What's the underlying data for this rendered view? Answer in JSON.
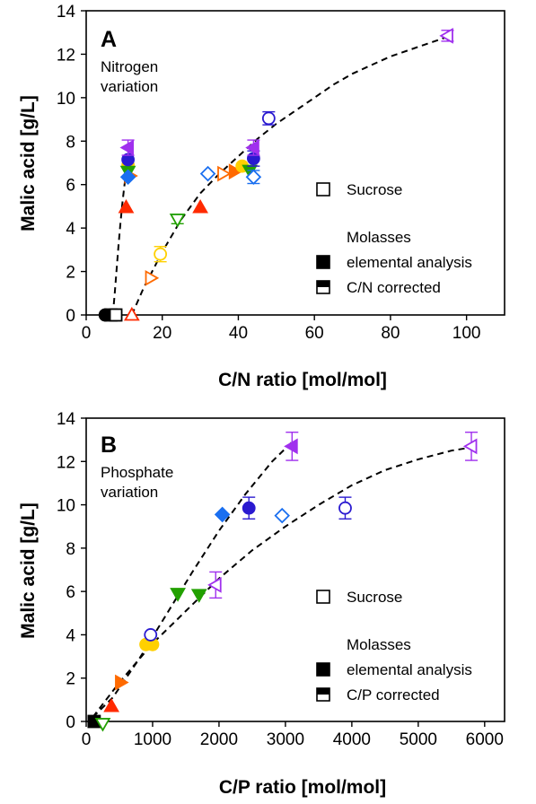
{
  "chart_data": [
    {
      "type": "scatter",
      "panel_label": "A",
      "annotation": [
        "Nitrogen",
        "variation"
      ],
      "xlabel": "C/N ratio   [mol/mol]",
      "ylabel": "Malic acid   [g/L]",
      "xlim": [
        0,
        110
      ],
      "ylim": [
        0,
        14
      ],
      "xticks": [
        0,
        20,
        40,
        60,
        80,
        100
      ],
      "yticks": [
        0,
        2,
        4,
        6,
        8,
        10,
        12,
        14
      ],
      "grid": false,
      "legend_position": "right",
      "legend": {
        "entries": [
          {
            "label": "Sucrose",
            "marker": "open-square"
          },
          {
            "label": "Molasses",
            "marker": "none"
          },
          {
            "label": "elemental analysis",
            "marker": "filled-square"
          },
          {
            "label": "C/N corrected",
            "marker": "half-filled-square"
          }
        ]
      },
      "fit_curves": [
        {
          "style": "dashed",
          "x": [
            7,
            7.5,
            8,
            8.5,
            9,
            9.5,
            10,
            10.5,
            11
          ],
          "y": [
            0,
            1.0,
            2.1,
            3.2,
            4.2,
            5.1,
            5.9,
            6.6,
            7.2
          ]
        },
        {
          "style": "dashed",
          "x": [
            12,
            15,
            20,
            25,
            30,
            35,
            40,
            45,
            50,
            55,
            60,
            65,
            70,
            75,
            80,
            85,
            90,
            95
          ],
          "y": [
            0,
            1.2,
            2.9,
            4.4,
            5.6,
            6.5,
            7.3,
            8.1,
            8.8,
            9.4,
            10.0,
            10.6,
            11.1,
            11.5,
            11.9,
            12.2,
            12.5,
            12.8
          ]
        }
      ],
      "points": [
        {
          "x": 12,
          "y": 0.0,
          "marker": "triangle-up",
          "fill": "open",
          "color": "#ff2a00"
        },
        {
          "x": 10.5,
          "y": 4.95,
          "marker": "triangle-up",
          "fill": "filled",
          "color": "#ff2a00"
        },
        {
          "x": 30,
          "y": 4.95,
          "marker": "triangle-up",
          "fill": "filled",
          "color": "#ff2a00"
        },
        {
          "x": 17,
          "y": 1.7,
          "marker": "triangle-right",
          "fill": "open",
          "color": "#ff6a00"
        },
        {
          "x": 36,
          "y": 6.5,
          "marker": "triangle-right",
          "fill": "open",
          "color": "#ff6a00"
        },
        {
          "x": 11.5,
          "y": 6.4,
          "marker": "triangle-right",
          "fill": "filled",
          "color": "#ff6a00"
        },
        {
          "x": 39,
          "y": 6.6,
          "marker": "triangle-right",
          "fill": "filled",
          "color": "#ff6a00"
        },
        {
          "x": 19.5,
          "y": 2.8,
          "marker": "circle",
          "fill": "open",
          "color": "#ffd000",
          "yerr": 0.35
        },
        {
          "x": 41,
          "y": 6.85,
          "marker": "circle",
          "fill": "filled",
          "color": "#ffd000"
        },
        {
          "x": 11,
          "y": 6.9,
          "marker": "circle",
          "fill": "filled",
          "color": "#ffd000"
        },
        {
          "x": 24,
          "y": 4.4,
          "marker": "triangle-down",
          "fill": "open",
          "color": "#22a000",
          "yerr": 0.2
        },
        {
          "x": 43,
          "y": 6.65,
          "marker": "triangle-down",
          "fill": "filled",
          "color": "#22a000"
        },
        {
          "x": 11,
          "y": 6.6,
          "marker": "triangle-down",
          "fill": "filled",
          "color": "#22a000"
        },
        {
          "x": 32,
          "y": 6.5,
          "marker": "diamond",
          "fill": "open",
          "color": "#1a6ff0"
        },
        {
          "x": 44,
          "y": 6.35,
          "marker": "diamond",
          "fill": "open",
          "color": "#1a6ff0",
          "yerr": 0.3
        },
        {
          "x": 11,
          "y": 6.35,
          "marker": "diamond",
          "fill": "filled",
          "color": "#1a6ff0"
        },
        {
          "x": 48,
          "y": 9.05,
          "marker": "circle",
          "fill": "open",
          "color": "#2a1ad0",
          "yerr": 0.3
        },
        {
          "x": 44,
          "y": 7.2,
          "marker": "circle",
          "fill": "filled",
          "color": "#2a1ad0",
          "yerr": 0.35
        },
        {
          "x": 11,
          "y": 7.15,
          "marker": "circle",
          "fill": "filled",
          "color": "#2a1ad0"
        },
        {
          "x": 95,
          "y": 12.85,
          "marker": "triangle-left",
          "fill": "open",
          "color": "#a030ee",
          "yerr": 0.25
        },
        {
          "x": 44,
          "y": 7.7,
          "marker": "triangle-left",
          "fill": "filled",
          "color": "#a030ee",
          "yerr": 0.35
        },
        {
          "x": 11,
          "y": 7.7,
          "marker": "triangle-left",
          "fill": "filled",
          "color": "#a030ee",
          "yerr": 0.35
        },
        {
          "x": 5,
          "y": 0.0,
          "marker": "circle",
          "fill": "filled",
          "color": "#000000"
        },
        {
          "x": 6.5,
          "y": 0.0,
          "marker": "square",
          "fill": "filled",
          "color": "#000000"
        },
        {
          "x": 7.8,
          "y": 0.0,
          "marker": "square",
          "fill": "open",
          "color": "#000000"
        }
      ]
    },
    {
      "type": "scatter",
      "panel_label": "B",
      "annotation": [
        "Phosphate",
        "variation"
      ],
      "xlabel": "C/P ratio   [mol/mol]",
      "ylabel": "Malic acid   [g/L]",
      "xlim": [
        0,
        6300
      ],
      "ylim": [
        0,
        14
      ],
      "xticks": [
        0,
        1000,
        2000,
        3000,
        4000,
        5000,
        6000
      ],
      "yticks": [
        0,
        2,
        4,
        6,
        8,
        10,
        12,
        14
      ],
      "grid": false,
      "legend_position": "right",
      "legend": {
        "entries": [
          {
            "label": "Sucrose",
            "marker": "open-square"
          },
          {
            "label": "Molasses",
            "marker": "none"
          },
          {
            "label": "elemental analysis",
            "marker": "filled-square"
          },
          {
            "label": "C/P corrected",
            "marker": "half-filled-square"
          }
        ]
      },
      "fit_curves": [
        {
          "style": "dashed",
          "x": [
            100,
            400,
            800,
            1200,
            1600,
            2000,
            2400,
            2800,
            3100
          ],
          "y": [
            0.2,
            1.1,
            2.9,
            4.9,
            6.9,
            8.8,
            10.5,
            12.0,
            12.9
          ]
        },
        {
          "style": "dashed",
          "x": [
            100,
            500,
            1000,
            1500,
            2000,
            2500,
            3000,
            3500,
            4000,
            4500,
            5000,
            5500,
            5900
          ],
          "y": [
            0.2,
            1.8,
            3.6,
            5.1,
            6.6,
            7.9,
            9.0,
            10.0,
            10.9,
            11.6,
            12.1,
            12.5,
            12.7
          ]
        }
      ],
      "points": [
        {
          "x": 120,
          "y": 0.0,
          "marker": "square",
          "fill": "filled",
          "color": "#000000"
        },
        {
          "x": 250,
          "y": -0.1,
          "marker": "triangle-down",
          "fill": "open",
          "color": "#22a000"
        },
        {
          "x": 380,
          "y": 0.7,
          "marker": "triangle-up",
          "fill": "filled",
          "color": "#ff2a00"
        },
        {
          "x": 520,
          "y": 1.8,
          "marker": "triangle-right",
          "fill": "filled",
          "color": "#ff6a00"
        },
        {
          "x": 900,
          "y": 3.55,
          "marker": "circle",
          "fill": "filled",
          "color": "#ffd000"
        },
        {
          "x": 1000,
          "y": 3.55,
          "marker": "circle",
          "fill": "filled",
          "color": "#ffd000"
        },
        {
          "x": 970,
          "y": 4.0,
          "marker": "circle",
          "fill": "open",
          "color": "#2a1ad0"
        },
        {
          "x": 1380,
          "y": 5.9,
          "marker": "triangle-down",
          "fill": "filled",
          "color": "#22a000"
        },
        {
          "x": 1700,
          "y": 5.85,
          "marker": "triangle-down",
          "fill": "filled",
          "color": "#22a000"
        },
        {
          "x": 1950,
          "y": 6.3,
          "marker": "triangle-left",
          "fill": "open",
          "color": "#a030ee",
          "yerr": 0.6
        },
        {
          "x": 2050,
          "y": 9.55,
          "marker": "diamond",
          "fill": "filled",
          "color": "#1a6ff0"
        },
        {
          "x": 2450,
          "y": 9.85,
          "marker": "circle",
          "fill": "filled",
          "color": "#2a1ad0",
          "yerr": 0.5
        },
        {
          "x": 2950,
          "y": 9.5,
          "marker": "diamond",
          "fill": "open",
          "color": "#1a6ff0"
        },
        {
          "x": 3900,
          "y": 9.85,
          "marker": "circle",
          "fill": "open",
          "color": "#2a1ad0",
          "yerr": 0.5
        },
        {
          "x": 3100,
          "y": 12.7,
          "marker": "triangle-left",
          "fill": "filled",
          "color": "#a030ee",
          "yerr": 0.65
        },
        {
          "x": 5800,
          "y": 12.7,
          "marker": "triangle-left",
          "fill": "open",
          "color": "#a030ee",
          "yerr": 0.65
        }
      ]
    }
  ]
}
